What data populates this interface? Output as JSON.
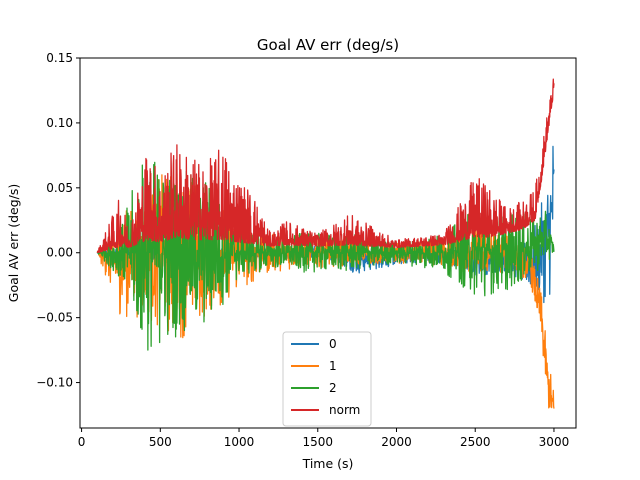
{
  "chart_data": {
    "type": "line",
    "title": "Goal AV err (deg/s)",
    "xlabel": "Time (s)",
    "ylabel": "Goal AV err (deg/s)",
    "xlim": [
      -10,
      3140
    ],
    "ylim": [
      -0.135,
      0.15
    ],
    "xticks": [
      0,
      500,
      1000,
      1500,
      2000,
      2500,
      3000
    ],
    "xtick_labels": [
      "0",
      "500",
      "1000",
      "1500",
      "2000",
      "2500",
      "3000"
    ],
    "yticks": [
      -0.1,
      -0.05,
      0.0,
      0.05,
      0.1,
      0.15
    ],
    "ytick_labels": [
      "−0.10",
      "−0.05",
      "0.00",
      "0.05",
      "0.10",
      "0.15"
    ],
    "grid": false,
    "legend_position": "lower center",
    "series": [
      {
        "name": "0",
        "color": "#1f77b4",
        "x": [
          100,
          400,
          600,
          800,
          1000,
          1200,
          1400,
          1600,
          1750,
          1900,
          2100,
          2300,
          2500,
          2700,
          2850,
          2950,
          3000
        ],
        "amplitude": [
          0.001,
          0.006,
          0.01,
          0.008,
          0.006,
          0.004,
          0.005,
          0.006,
          0.012,
          0.008,
          0.006,
          0.006,
          0.012,
          0.01,
          0.02,
          0.045,
          0.07
        ],
        "offset": [
          0,
          0,
          0,
          0,
          0,
          0,
          0,
          0,
          -0.005,
          -0.004,
          -0.002,
          -0.002,
          -0.006,
          -0.005,
          -0.01,
          0.005,
          0.04
        ]
      },
      {
        "name": "1",
        "color": "#ff7f0e",
        "x": [
          100,
          250,
          400,
          600,
          800,
          1000,
          1200,
          1400,
          1700,
          2000,
          2300,
          2500,
          2700,
          2850,
          2920,
          2960,
          3000
        ],
        "amplitude": [
          0.001,
          0.04,
          0.05,
          0.07,
          0.05,
          0.03,
          0.015,
          0.012,
          0.01,
          0.008,
          0.01,
          0.02,
          0.015,
          0.012,
          0.02,
          0.02,
          0.015
        ],
        "offset": [
          0,
          -0.01,
          0,
          0,
          0,
          0,
          0,
          0,
          0,
          0,
          0,
          0,
          0,
          -0.01,
          -0.05,
          -0.1,
          -0.12
        ]
      },
      {
        "name": "2",
        "color": "#2ca02c",
        "x": [
          100,
          250,
          400,
          600,
          800,
          1000,
          1200,
          1400,
          1700,
          2000,
          2300,
          2500,
          2700,
          2850,
          2950,
          3000
        ],
        "amplitude": [
          0.001,
          0.02,
          0.08,
          0.065,
          0.06,
          0.02,
          0.012,
          0.015,
          0.015,
          0.008,
          0.015,
          0.035,
          0.03,
          0.025,
          0.02,
          0.005
        ],
        "offset": [
          0,
          0,
          0,
          0,
          0,
          0,
          0,
          0,
          0,
          0,
          0,
          0,
          0,
          0.005,
          0.012,
          0.003
        ]
      },
      {
        "name": "norm",
        "color": "#d62728",
        "x": [
          100,
          250,
          300,
          420,
          500,
          600,
          700,
          800,
          900,
          1000,
          1100,
          1200,
          1300,
          1500,
          1700,
          2000,
          2300,
          2500,
          2600,
          2700,
          2800,
          2880,
          2920,
          2960,
          3000
        ],
        "upper": [
          0.001,
          0.045,
          0.02,
          0.086,
          0.06,
          0.088,
          0.075,
          0.07,
          0.085,
          0.06,
          0.045,
          0.015,
          0.025,
          0.015,
          0.03,
          0.01,
          0.015,
          0.06,
          0.05,
          0.035,
          0.04,
          0.05,
          0.08,
          0.11,
          0.137
        ],
        "lower": [
          0.0,
          0.005,
          0.004,
          0.01,
          0.008,
          0.012,
          0.01,
          0.01,
          0.01,
          0.008,
          0.007,
          0.005,
          0.006,
          0.005,
          0.006,
          0.004,
          0.006,
          0.012,
          0.012,
          0.015,
          0.018,
          0.025,
          0.055,
          0.09,
          0.125
        ]
      }
    ]
  }
}
